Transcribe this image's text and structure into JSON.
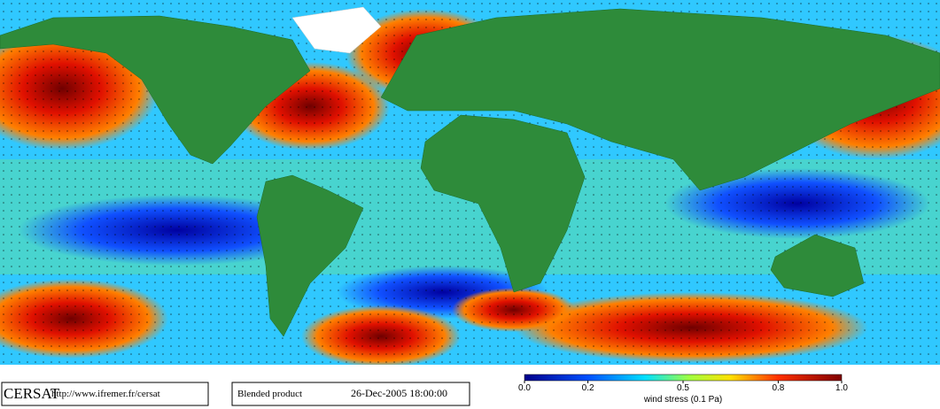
{
  "footer": {
    "logo": "CERSAT",
    "url": "http://www.ifremer.fr/cersat",
    "product": "Blended product",
    "datetime": "26-Dec-2005 18:00:00"
  },
  "colorbar": {
    "lim": [
      0,
      1
    ],
    "ticks": [
      {
        "value": 0,
        "label": "0.0"
      },
      {
        "value": 0.2,
        "label": "0.2"
      },
      {
        "value": 0.5,
        "label": "0.5"
      },
      {
        "value": 0.8,
        "label": "0.8"
      },
      {
        "value": 1,
        "label": "1.0"
      }
    ],
    "label": "wind stress (0.1 Pa)"
  }
}
